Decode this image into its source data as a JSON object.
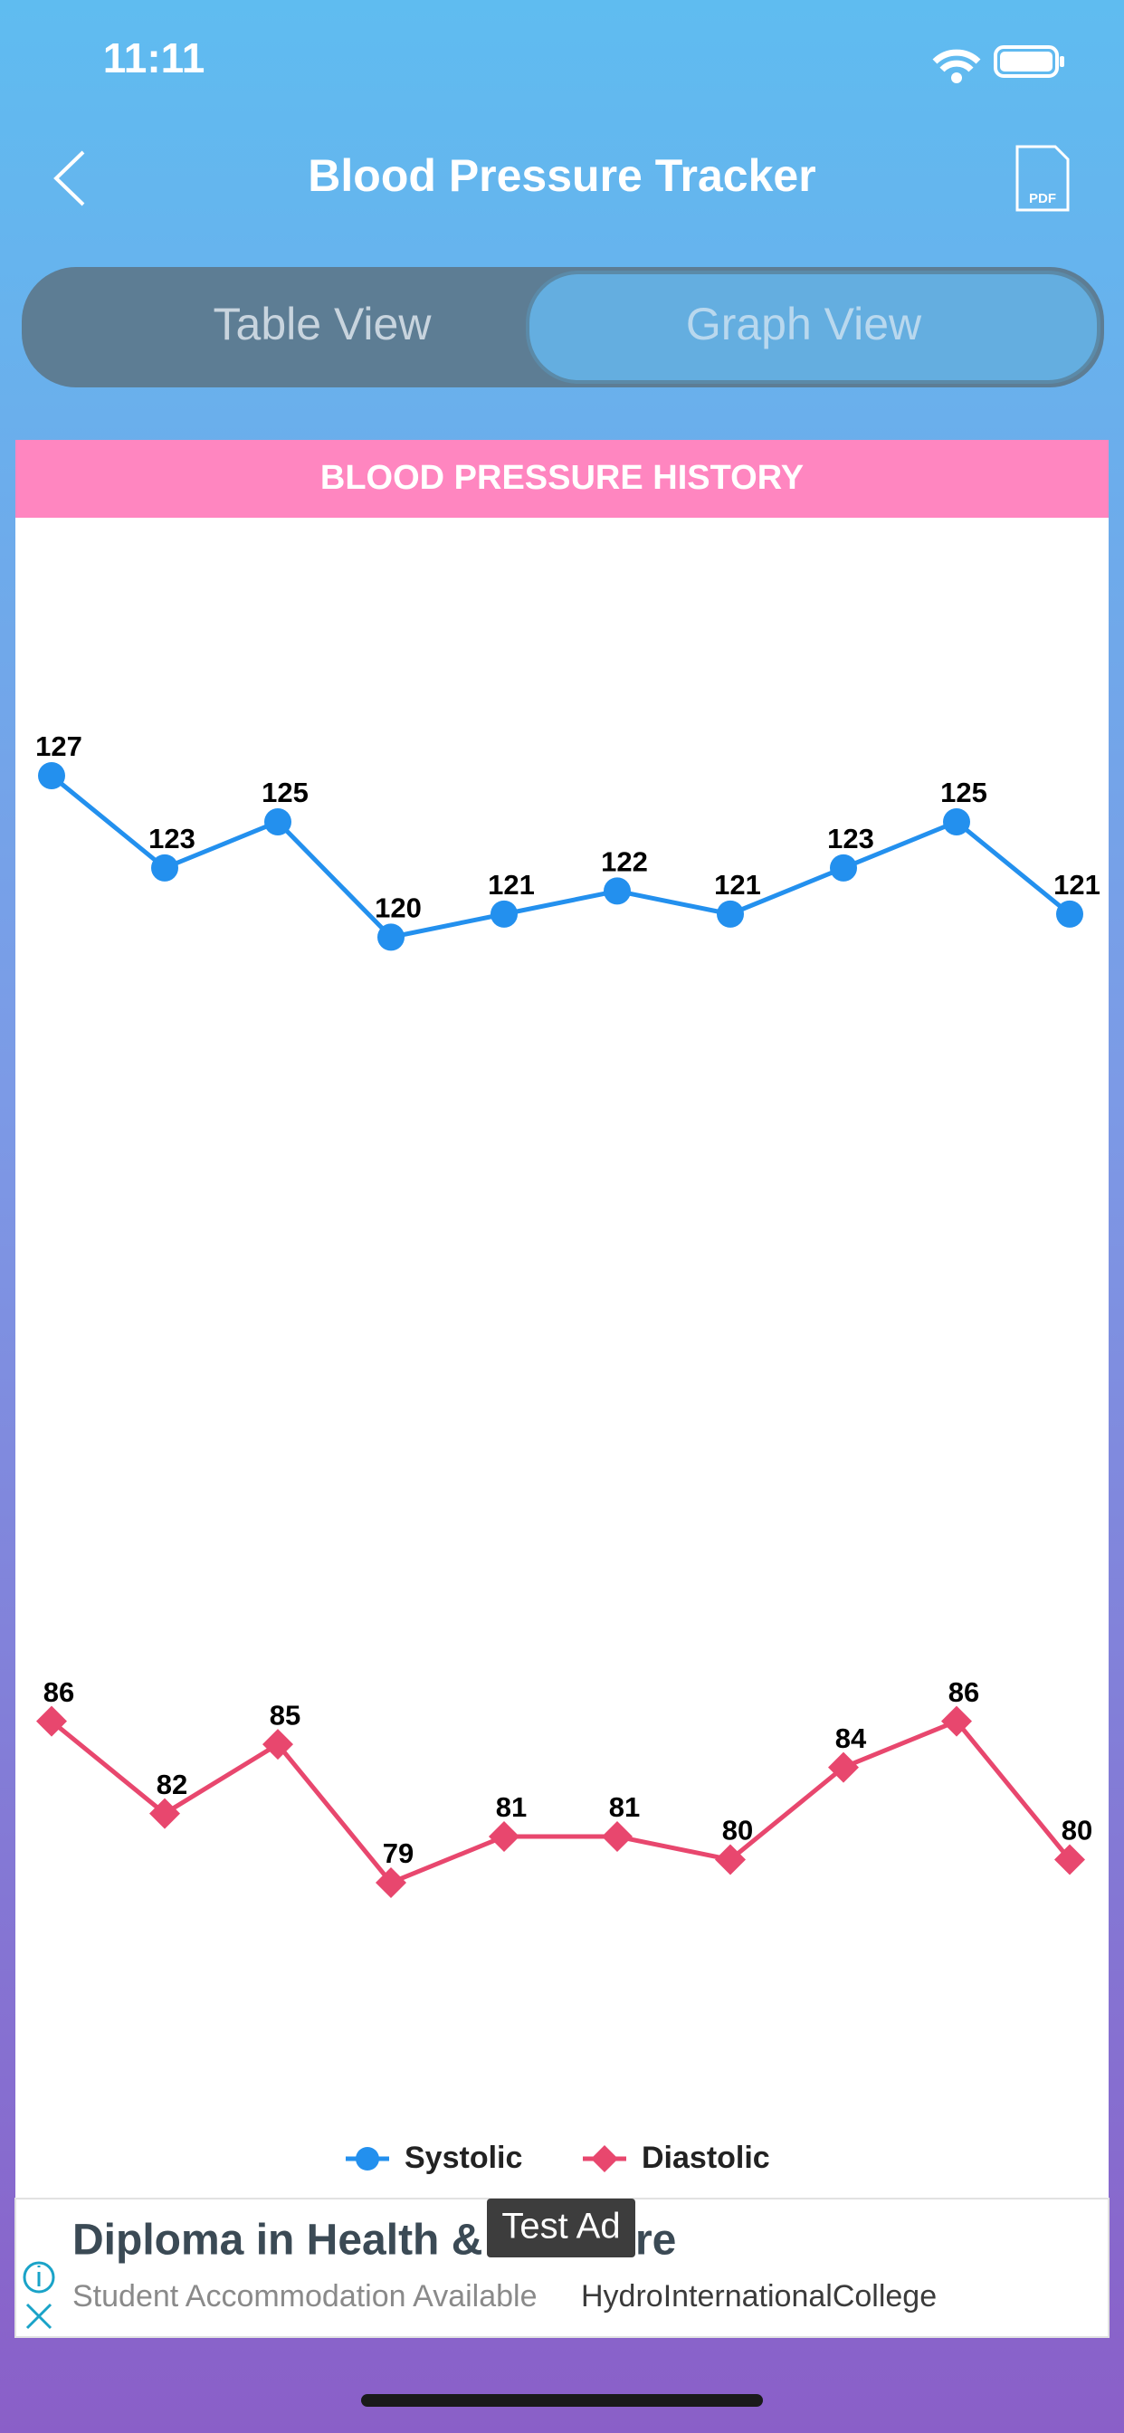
{
  "status_bar": {
    "time": "11:11"
  },
  "header": {
    "title": "Blood Pressure Tracker"
  },
  "tabs": [
    "Table View",
    "Graph View"
  ],
  "chart_data": {
    "type": "line",
    "title": "BLOOD PRESSURE HISTORY",
    "categories": [
      null,
      null,
      null,
      null,
      null,
      null,
      null,
      null,
      null,
      null
    ],
    "series": [
      {
        "name": "Systolic",
        "color": "#2390ee",
        "marker": "circle",
        "values": [
          127,
          123,
          125,
          120,
          121,
          122,
          121,
          123,
          125,
          121
        ]
      },
      {
        "name": "Diastolic",
        "color": "#e8476e",
        "marker": "diamond",
        "values": [
          86,
          82,
          85,
          79,
          81,
          81,
          80,
          84,
          86,
          80
        ]
      }
    ]
  },
  "ad": {
    "badge": "Test Ad",
    "title_start": "Diploma in Health &",
    "title_end": "re",
    "subtitle": "Student Accommodation Available",
    "advertiser": "HydroInternationalCollege"
  }
}
